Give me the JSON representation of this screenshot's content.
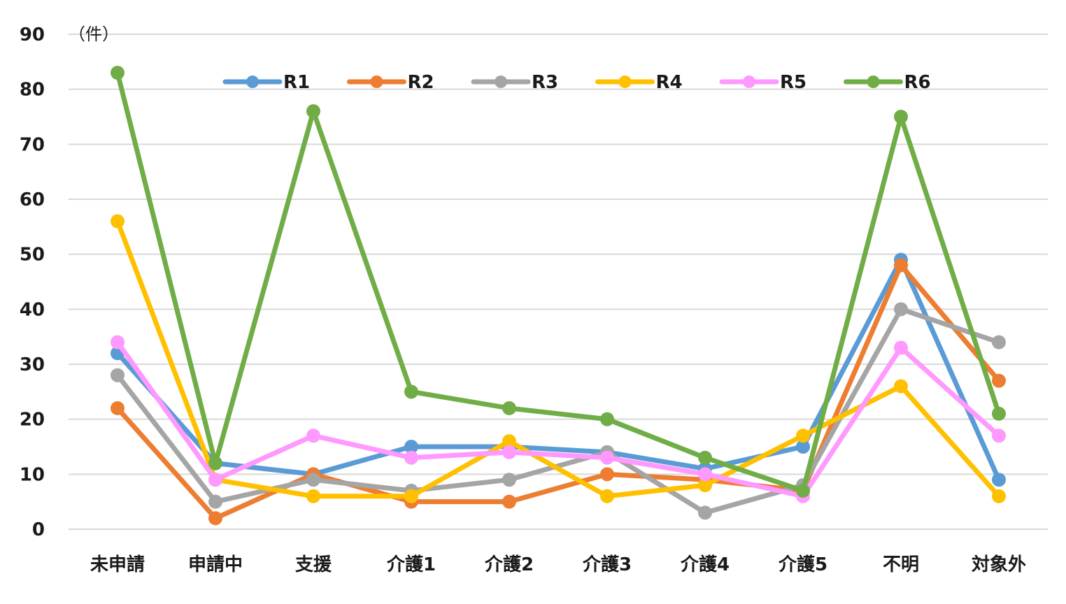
{
  "chart_data": {
    "type": "line",
    "title": "",
    "xlabel": "",
    "ylabel": "",
    "unit_label": "（件）",
    "ylim": [
      0,
      90
    ],
    "yticks": [
      0,
      10,
      20,
      30,
      40,
      50,
      60,
      70,
      80,
      90
    ],
    "grid": true,
    "legend_position": "top",
    "categories": [
      "未申請",
      "申請中",
      "支援",
      "介護1",
      "介護2",
      "介護3",
      "介護4",
      "介護5",
      "不明",
      "対象外"
    ],
    "series": [
      {
        "name": "R1",
        "color": "#5b9bd5",
        "values": [
          32,
          12,
          10,
          15,
          15,
          14,
          11,
          15,
          49,
          9
        ]
      },
      {
        "name": "R2",
        "color": "#ed7d31",
        "values": [
          22,
          2,
          10,
          5,
          5,
          10,
          9,
          7,
          48,
          27
        ]
      },
      {
        "name": "R3",
        "color": "#a5a5a5",
        "values": [
          28,
          5,
          9,
          7,
          9,
          14,
          3,
          8,
          40,
          34
        ]
      },
      {
        "name": "R4",
        "color": "#ffc000",
        "values": [
          56,
          9,
          6,
          6,
          16,
          6,
          8,
          17,
          26,
          6
        ]
      },
      {
        "name": "R5",
        "color": "#ff99ff",
        "values": [
          34,
          9,
          17,
          13,
          14,
          13,
          10,
          6,
          33,
          17
        ]
      },
      {
        "name": "R6",
        "color": "#70ad47",
        "values": [
          83,
          12,
          76,
          25,
          22,
          20,
          13,
          7,
          75,
          21
        ]
      }
    ]
  }
}
